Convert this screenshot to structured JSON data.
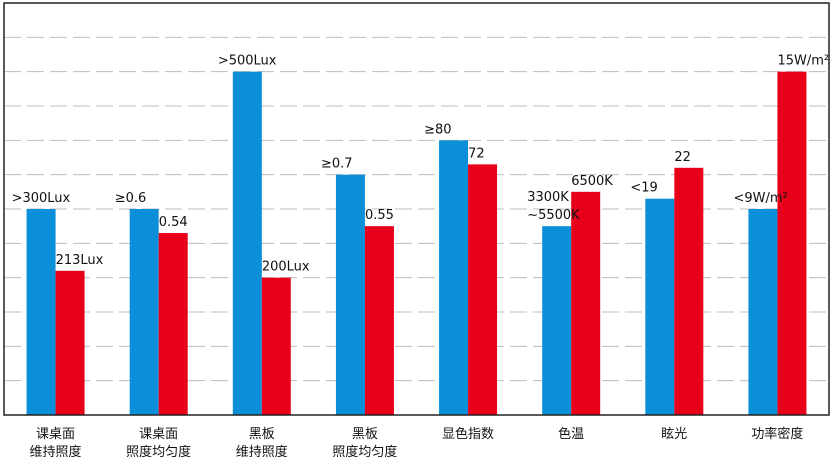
{
  "chart_data": {
    "type": "bar",
    "ylim": [
      0,
      12
    ],
    "grid": true,
    "colors": {
      "blue": "#0a8fd8",
      "red": "#e8001b"
    },
    "categories": [
      [
        "课桌面",
        "维持照度"
      ],
      [
        "课桌面",
        "照度均匀度"
      ],
      [
        "黑板",
        "维持照度"
      ],
      [
        "黑板",
        "照度均匀度"
      ],
      [
        "显色指数"
      ],
      [
        "色温"
      ],
      [
        "眩光"
      ],
      [
        "功率密度"
      ]
    ],
    "series": [
      {
        "color": "blue",
        "values": [
          6,
          6,
          10,
          7,
          8,
          5.5,
          6.3,
          6
        ],
        "labels": [
          [
            ">300Lux"
          ],
          [
            "≥0.6"
          ],
          [
            ">500Lux"
          ],
          [
            "≥0.7"
          ],
          [
            "≥80"
          ],
          [
            "3300K",
            "~5500K"
          ],
          [
            "<19"
          ],
          [
            "<9W/m²"
          ]
        ]
      },
      {
        "color": "red",
        "values": [
          4.2,
          5.3,
          4,
          5.5,
          7.3,
          6.5,
          7.2,
          10
        ],
        "labels": [
          [
            "213Lux"
          ],
          [
            "0.54"
          ],
          [
            "200Lux"
          ],
          [
            "0.55"
          ],
          [
            "72"
          ],
          [
            "6500K"
          ],
          [
            "22"
          ],
          [
            "15W/m²"
          ]
        ]
      }
    ]
  }
}
